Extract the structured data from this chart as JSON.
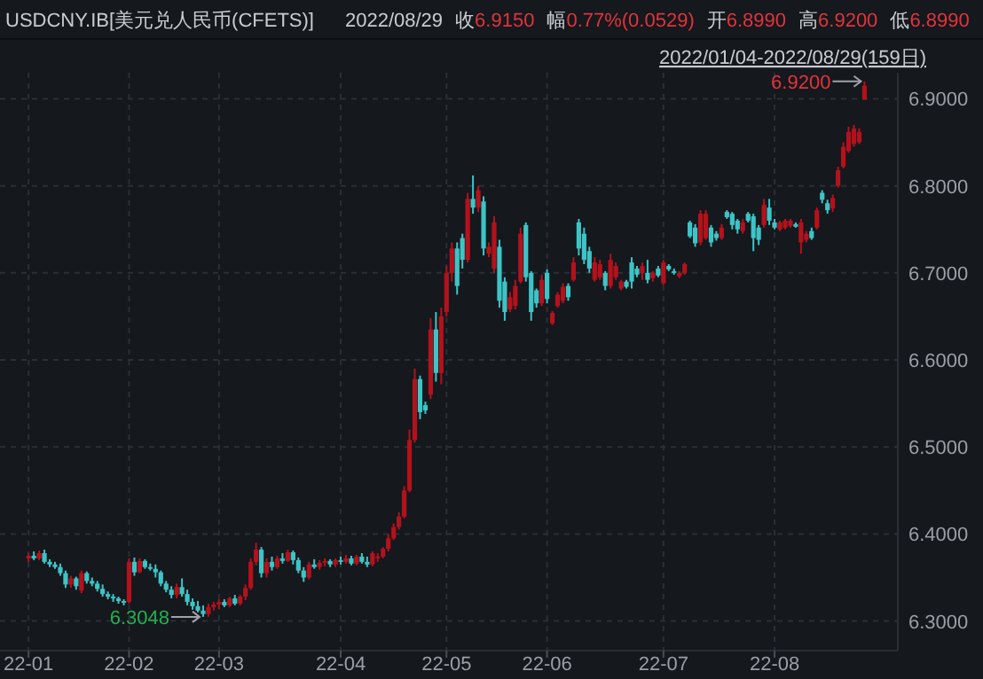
{
  "chart_data": {
    "type": "candlestick",
    "title": "USDCNY.IB[美元兑人民币(CFETS)]",
    "subtitle": "2022/01/04-2022/08/29(159日)",
    "annotations": [
      "2022/08/29",
      "收6.9150",
      "幅0.77%(0.0529)",
      "开6.8990",
      "高6.9200",
      "低6.8990",
      "6.3048",
      "6.9200"
    ],
    "categories": [
      "22-01",
      null,
      null,
      null,
      null,
      null,
      null,
      null,
      null,
      null,
      null,
      null,
      null,
      null,
      null,
      null,
      null,
      null,
      null,
      "22-02",
      null,
      null,
      null,
      null,
      null,
      null,
      null,
      null,
      null,
      null,
      null,
      null,
      null,
      null,
      null,
      null,
      "22-03",
      null,
      null,
      null,
      null,
      null,
      null,
      null,
      null,
      null,
      null,
      null,
      null,
      null,
      null,
      null,
      null,
      null,
      null,
      null,
      null,
      null,
      null,
      "22-04",
      null,
      null,
      null,
      null,
      null,
      null,
      null,
      null,
      null,
      null,
      null,
      null,
      null,
      null,
      null,
      null,
      null,
      null,
      null,
      "22-05",
      null,
      null,
      null,
      null,
      null,
      null,
      null,
      null,
      null,
      null,
      null,
      null,
      null,
      null,
      null,
      null,
      null,
      null,
      "22-06",
      null,
      null,
      null,
      null,
      null,
      null,
      null,
      null,
      null,
      null,
      null,
      null,
      null,
      null,
      null,
      null,
      null,
      null,
      null,
      null,
      null,
      "22-07",
      null,
      null,
      null,
      null,
      null,
      null,
      null,
      null,
      null,
      null,
      null,
      null,
      null,
      null,
      null,
      null,
      null,
      null,
      null,
      null,
      "22-08",
      null,
      null,
      null,
      null,
      null,
      null,
      null,
      null,
      null,
      null,
      null,
      null,
      null,
      null,
      null,
      null,
      null
    ],
    "ohlc": [
      [
        6.372,
        6.378,
        6.368,
        6.375
      ],
      [
        6.375,
        6.38,
        6.37,
        6.372
      ],
      [
        6.372,
        6.381,
        6.37,
        6.378
      ],
      [
        6.378,
        6.382,
        6.366,
        6.368
      ],
      [
        6.368,
        6.371,
        6.362,
        6.365
      ],
      [
        6.365,
        6.368,
        6.36,
        6.362
      ],
      [
        6.362,
        6.366,
        6.352,
        6.355
      ],
      [
        6.355,
        6.358,
        6.338,
        6.342
      ],
      [
        6.342,
        6.352,
        6.338,
        6.349
      ],
      [
        6.349,
        6.351,
        6.336,
        6.34
      ],
      [
        6.335,
        6.358,
        6.332,
        6.355
      ],
      [
        6.355,
        6.357,
        6.343,
        6.346
      ],
      [
        6.346,
        6.35,
        6.34,
        6.343
      ],
      [
        6.343,
        6.346,
        6.334,
        6.337
      ],
      [
        6.337,
        6.342,
        6.328,
        6.331
      ],
      [
        6.331,
        6.334,
        6.325,
        6.328
      ],
      [
        6.328,
        6.331,
        6.322,
        6.326
      ],
      [
        6.326,
        6.328,
        6.32,
        6.323
      ],
      [
        6.323,
        6.325,
        6.318,
        6.321
      ],
      [
        6.322,
        6.372,
        6.32,
        6.368
      ],
      [
        6.368,
        6.373,
        6.352,
        6.356
      ],
      [
        6.356,
        6.372,
        6.355,
        6.369
      ],
      [
        6.369,
        6.371,
        6.36,
        6.362
      ],
      [
        6.362,
        6.366,
        6.358,
        6.36
      ],
      [
        6.36,
        6.365,
        6.35,
        6.356
      ],
      [
        6.356,
        6.358,
        6.34,
        6.343
      ],
      [
        6.343,
        6.346,
        6.333,
        6.336
      ],
      [
        6.336,
        6.34,
        6.326,
        6.33
      ],
      [
        6.33,
        6.343,
        6.326,
        6.339
      ],
      [
        6.339,
        6.349,
        6.328,
        6.331
      ],
      [
        6.331,
        6.336,
        6.318,
        6.322
      ],
      [
        6.322,
        6.326,
        6.313,
        6.317
      ],
      [
        6.317,
        6.323,
        6.31,
        6.312
      ],
      [
        6.312,
        6.318,
        6.3048,
        6.308
      ],
      [
        6.308,
        6.32,
        6.305,
        6.316
      ],
      [
        6.316,
        6.322,
        6.312,
        6.319
      ],
      [
        6.319,
        6.325,
        6.314,
        6.322
      ],
      [
        6.322,
        6.325,
        6.316,
        6.318
      ],
      [
        6.318,
        6.328,
        6.316,
        6.326
      ],
      [
        6.326,
        6.33,
        6.318,
        6.32
      ],
      [
        6.32,
        6.33,
        6.318,
        6.328
      ],
      [
        6.328,
        6.342,
        6.324,
        6.338
      ],
      [
        6.338,
        6.372,
        6.336,
        6.368
      ],
      [
        6.368,
        6.39,
        6.364,
        6.382
      ],
      [
        6.382,
        6.385,
        6.35,
        6.355
      ],
      [
        6.355,
        6.372,
        6.35,
        6.368
      ],
      [
        6.368,
        6.374,
        6.358,
        6.362
      ],
      [
        6.362,
        6.375,
        6.36,
        6.372
      ],
      [
        6.372,
        6.378,
        6.366,
        6.369
      ],
      [
        6.369,
        6.382,
        6.368,
        6.379
      ],
      [
        6.379,
        6.381,
        6.365,
        6.37
      ],
      [
        6.37,
        6.373,
        6.355,
        6.358
      ],
      [
        6.358,
        6.362,
        6.345,
        6.35
      ],
      [
        6.35,
        6.368,
        6.348,
        6.365
      ],
      [
        6.365,
        6.371,
        6.36,
        6.362
      ],
      [
        6.362,
        6.37,
        6.359,
        6.367
      ],
      [
        6.367,
        6.372,
        6.363,
        6.369
      ],
      [
        6.369,
        6.371,
        6.362,
        6.365
      ],
      [
        6.365,
        6.372,
        6.362,
        6.37
      ],
      [
        6.37,
        6.374,
        6.365,
        6.368
      ],
      [
        6.368,
        6.376,
        6.366,
        6.372
      ],
      [
        6.372,
        6.375,
        6.364,
        6.366
      ],
      [
        6.366,
        6.376,
        6.364,
        6.374
      ],
      [
        6.374,
        6.378,
        6.366,
        6.368
      ],
      [
        6.368,
        6.374,
        6.362,
        6.365
      ],
      [
        6.365,
        6.38,
        6.363,
        6.378
      ],
      [
        6.372,
        6.378,
        6.368,
        6.374
      ],
      [
        6.374,
        6.385,
        6.372,
        6.383
      ],
      [
        6.383,
        6.4,
        6.38,
        6.395
      ],
      [
        6.395,
        6.412,
        6.393,
        6.408
      ],
      [
        6.408,
        6.425,
        6.405,
        6.42
      ],
      [
        6.42,
        6.455,
        6.418,
        6.45
      ],
      [
        6.45,
        6.52,
        6.448,
        6.508
      ],
      [
        6.508,
        6.59,
        6.505,
        6.578
      ],
      [
        6.578,
        6.582,
        6.532,
        6.54
      ],
      [
        6.548,
        6.552,
        6.538,
        6.542
      ],
      [
        6.56,
        6.648,
        6.555,
        6.635
      ],
      [
        6.635,
        6.655,
        6.575,
        6.585
      ],
      [
        6.585,
        6.66,
        6.572,
        6.65
      ],
      [
        6.655,
        6.708,
        6.65,
        6.7
      ],
      [
        6.7,
        6.735,
        6.69,
        6.728
      ],
      [
        6.728,
        6.735,
        6.675,
        6.685
      ],
      [
        6.74,
        6.745,
        6.705,
        6.715
      ],
      [
        6.715,
        6.792,
        6.712,
        6.785
      ],
      [
        6.785,
        6.812,
        6.768,
        6.775
      ],
      [
        6.775,
        6.8,
        6.77,
        6.795
      ],
      [
        6.782,
        6.788,
        6.72,
        6.728
      ],
      [
        6.722,
        6.735,
        6.718,
        6.73
      ],
      [
        6.705,
        6.765,
        6.7,
        6.758
      ],
      [
        6.73,
        6.738,
        6.66,
        6.668
      ],
      [
        6.69,
        6.695,
        6.645,
        6.655
      ],
      [
        6.658,
        6.678,
        6.655,
        6.672
      ],
      [
        6.662,
        6.692,
        6.658,
        6.685
      ],
      [
        6.69,
        6.752,
        6.688,
        6.745
      ],
      [
        6.755,
        6.758,
        6.69,
        6.695
      ],
      [
        6.7,
        6.702,
        6.645,
        6.655
      ],
      [
        6.68,
        6.682,
        6.66,
        6.665
      ],
      [
        6.665,
        6.698,
        6.662,
        6.692
      ],
      [
        6.7,
        6.704,
        6.665,
        6.67
      ],
      [
        6.642,
        6.656,
        6.64,
        6.654
      ],
      [
        6.662,
        6.678,
        6.66,
        6.675
      ],
      [
        6.668,
        6.688,
        6.665,
        6.684
      ],
      [
        6.685,
        6.688,
        6.668,
        6.672
      ],
      [
        6.692,
        6.718,
        6.69,
        6.712
      ],
      [
        6.758,
        6.762,
        6.72,
        6.728
      ],
      [
        6.745,
        6.752,
        6.71,
        6.715
      ],
      [
        6.725,
        6.73,
        6.7,
        6.705
      ],
      [
        6.692,
        6.718,
        6.69,
        6.712
      ],
      [
        6.695,
        6.715,
        6.692,
        6.71
      ],
      [
        6.7,
        6.702,
        6.68,
        6.685
      ],
      [
        6.685,
        6.722,
        6.682,
        6.715
      ],
      [
        6.695,
        6.712,
        6.692,
        6.708
      ],
      [
        6.682,
        6.692,
        6.68,
        6.69
      ],
      [
        6.69,
        6.692,
        6.682,
        6.684
      ],
      [
        6.712,
        6.718,
        6.682,
        6.69
      ],
      [
        6.705,
        6.708,
        6.695,
        6.698
      ],
      [
        6.7,
        6.712,
        6.692,
        6.708
      ],
      [
        6.7,
        6.715,
        6.688,
        6.692
      ],
      [
        6.694,
        6.702,
        6.69,
        6.7
      ],
      [
        6.705,
        6.708,
        6.695,
        6.697
      ],
      [
        6.688,
        6.715,
        6.686,
        6.712
      ],
      [
        6.708,
        6.71,
        6.702,
        6.704
      ],
      [
        6.702,
        6.705,
        6.698,
        6.7
      ],
      [
        6.696,
        6.702,
        6.694,
        6.7
      ],
      [
        6.7,
        6.712,
        6.698,
        6.71
      ],
      [
        6.758,
        6.76,
        6.74,
        6.742
      ],
      [
        6.752,
        6.756,
        6.73,
        6.734
      ],
      [
        6.735,
        6.772,
        6.732,
        6.768
      ],
      [
        6.74,
        6.772,
        6.738,
        6.768
      ],
      [
        6.752,
        6.755,
        6.73,
        6.735
      ],
      [
        6.745,
        6.748,
        6.737,
        6.74
      ],
      [
        6.74,
        6.756,
        6.738,
        6.752
      ],
      [
        6.77,
        6.772,
        6.762,
        6.764
      ],
      [
        6.768,
        6.77,
        6.75,
        6.755
      ],
      [
        6.76,
        6.762,
        6.745,
        6.75
      ],
      [
        6.748,
        6.762,
        6.745,
        6.758
      ],
      [
        6.768,
        6.77,
        6.758,
        6.76
      ],
      [
        6.765,
        6.768,
        6.725,
        6.74
      ],
      [
        6.752,
        6.755,
        6.732,
        6.738
      ],
      [
        6.755,
        6.785,
        6.752,
        6.778
      ],
      [
        6.775,
        6.785,
        6.755,
        6.76
      ],
      [
        6.758,
        6.762,
        6.75,
        6.752
      ],
      [
        6.75,
        6.76,
        6.748,
        6.758
      ],
      [
        6.752,
        6.762,
        6.75,
        6.76
      ],
      [
        6.754,
        6.762,
        6.752,
        6.76
      ],
      [
        6.756,
        6.758,
        6.752,
        6.753
      ],
      [
        6.735,
        6.762,
        6.722,
        6.758
      ],
      [
        6.738,
        6.748,
        6.735,
        6.745
      ],
      [
        6.748,
        6.752,
        6.738,
        6.74
      ],
      [
        6.752,
        6.775,
        6.75,
        6.772
      ],
      [
        6.792,
        6.795,
        6.78,
        6.784
      ],
      [
        6.78,
        6.784,
        6.768,
        6.772
      ],
      [
        6.774,
        6.79,
        6.77,
        6.786
      ],
      [
        6.8,
        6.822,
        6.798,
        6.818
      ],
      [
        6.822,
        6.85,
        6.82,
        6.845
      ],
      [
        6.84,
        6.868,
        6.838,
        6.862
      ],
      [
        6.848,
        6.87,
        6.845,
        6.866
      ],
      [
        6.85,
        6.866,
        6.848,
        6.862
      ],
      [
        6.899,
        6.92,
        6.899,
        6.915
      ]
    ],
    "colors": [
      "#b3121c",
      "#3ec4c6",
      "#b3121c",
      "#3ec4c6",
      "#3ec4c6",
      "#3ec4c6",
      "#3ec4c6",
      "#3ec4c6",
      "#b3121c",
      "#3ec4c6",
      "#b3121c",
      "#3ec4c6",
      "#3ec4c6",
      "#3ec4c6",
      "#3ec4c6",
      "#3ec4c6",
      "#3ec4c6",
      "#3ec4c6",
      "#3ec4c6",
      "#b3121c",
      "#3ec4c6",
      "#b3121c",
      "#3ec4c6",
      "#3ec4c6",
      "#3ec4c6",
      "#3ec4c6",
      "#3ec4c6",
      "#3ec4c6",
      "#b3121c",
      "#3ec4c6",
      "#3ec4c6",
      "#3ec4c6",
      "#3ec4c6",
      "#3ec4c6",
      "#b3121c",
      "#b3121c",
      "#b3121c",
      "#3ec4c6",
      "#b3121c",
      "#3ec4c6",
      "#b3121c",
      "#b3121c",
      "#b3121c",
      "#b3121c",
      "#3ec4c6",
      "#b3121c",
      "#3ec4c6",
      "#b3121c",
      "#3ec4c6",
      "#b3121c",
      "#3ec4c6",
      "#3ec4c6",
      "#3ec4c6",
      "#b3121c",
      "#3ec4c6",
      "#b3121c",
      "#b3121c",
      "#3ec4c6",
      "#b3121c",
      "#3ec4c6",
      "#b3121c",
      "#3ec4c6",
      "#b3121c",
      "#3ec4c6",
      "#3ec4c6",
      "#b3121c",
      "#b3121c",
      "#b3121c",
      "#b3121c",
      "#b3121c",
      "#b3121c",
      "#b3121c",
      "#b3121c",
      "#b3121c",
      "#3ec4c6",
      "#3ec4c6",
      "#b3121c",
      "#3ec4c6",
      "#b3121c",
      "#b3121c",
      "#b3121c",
      "#3ec4c6",
      "#3ec4c6",
      "#b3121c",
      "#3ec4c6",
      "#b3121c",
      "#3ec4c6",
      "#b3121c",
      "#b3121c",
      "#3ec4c6",
      "#3ec4c6",
      "#b3121c",
      "#b3121c",
      "#b3121c",
      "#3ec4c6",
      "#3ec4c6",
      "#3ec4c6",
      "#b3121c",
      "#3ec4c6",
      "#b3121c",
      "#b3121c",
      "#b3121c",
      "#3ec4c6",
      "#b3121c",
      "#3ec4c6",
      "#3ec4c6",
      "#3ec4c6",
      "#b3121c",
      "#b3121c",
      "#3ec4c6",
      "#b3121c",
      "#b3121c",
      "#b3121c",
      "#3ec4c6",
      "#3ec4c6",
      "#3ec4c6",
      "#b3121c",
      "#3ec4c6",
      "#b3121c",
      "#3ec4c6",
      "#b3121c",
      "#3ec4c6",
      "#3ec4c6",
      "#b3121c",
      "#b3121c",
      "#3ec4c6",
      "#3ec4c6",
      "#b3121c",
      "#b3121c",
      "#3ec4c6",
      "#3ec4c6",
      "#b3121c",
      "#3ec4c6",
      "#3ec4c6",
      "#3ec4c6",
      "#b3121c",
      "#3ec4c6",
      "#3ec4c6",
      "#3ec4c6",
      "#b3121c",
      "#3ec4c6",
      "#3ec4c6",
      "#b3121c",
      "#b3121c",
      "#b3121c",
      "#3ec4c6",
      "#b3121c",
      "#b3121c",
      "#3ec4c6",
      "#b3121c",
      "#3ec4c6",
      "#3ec4c6",
      "#b3121c",
      "#b3121c",
      "#b3121c",
      "#b3121c",
      "#b3121c",
      "#b3121c",
      "#b3121c"
    ],
    "ylim": [
      6.266,
      6.93
    ],
    "yticks": [
      {
        "value": 6.3,
        "label": "6.3000"
      },
      {
        "value": 6.4,
        "label": "6.4000"
      },
      {
        "value": 6.5,
        "label": "6.5000"
      },
      {
        "value": 6.6,
        "label": "6.6000"
      },
      {
        "value": 6.7,
        "label": "6.7000"
      },
      {
        "value": 6.8,
        "label": "6.8000"
      },
      {
        "value": 6.9,
        "label": "6.9000"
      }
    ],
    "grid": true
  }
}
